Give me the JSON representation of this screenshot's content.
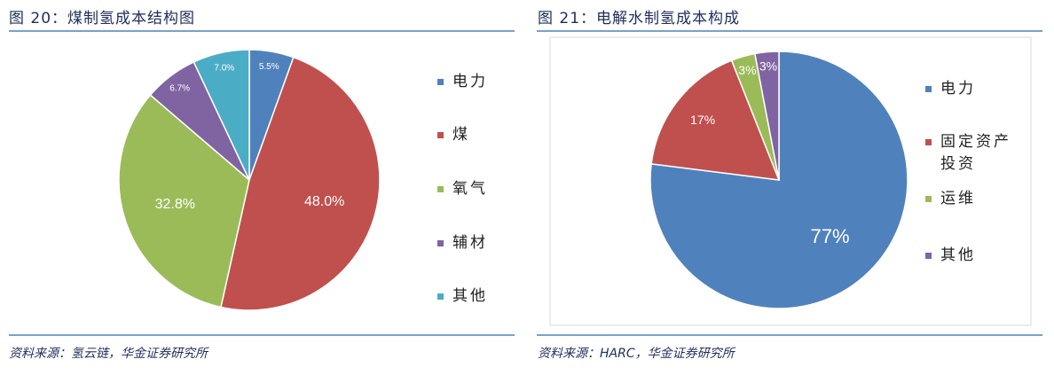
{
  "chart_data": [
    {
      "type": "pie",
      "title": "图 20：煤制氢成本结构图",
      "source": "资料来源：氢云链，华金证券研究所",
      "categories": [
        "电力",
        "煤",
        "氧气",
        "辅材",
        "其他"
      ],
      "values": [
        5.5,
        48.0,
        32.8,
        6.7,
        7.0
      ],
      "value_labels": [
        "5.5%",
        "48.0%",
        "32.8%",
        "6.7%",
        "7.0%"
      ],
      "colors": [
        "#4f81bd",
        "#c0504d",
        "#9bbb59",
        "#8064a2",
        "#4bacc6"
      ]
    },
    {
      "type": "pie",
      "title": "图 21：电解水制氢成本构成",
      "source": "资料来源：HARC，华金证券研究所",
      "categories": [
        "电力",
        "固定资产投资",
        "运维",
        "其他"
      ],
      "values": [
        77,
        17,
        3,
        3
      ],
      "value_labels": [
        "77%",
        "17%",
        "3%",
        "3%"
      ],
      "colors": [
        "#4f81bd",
        "#c0504d",
        "#9bbb59",
        "#8064a2"
      ]
    }
  ]
}
